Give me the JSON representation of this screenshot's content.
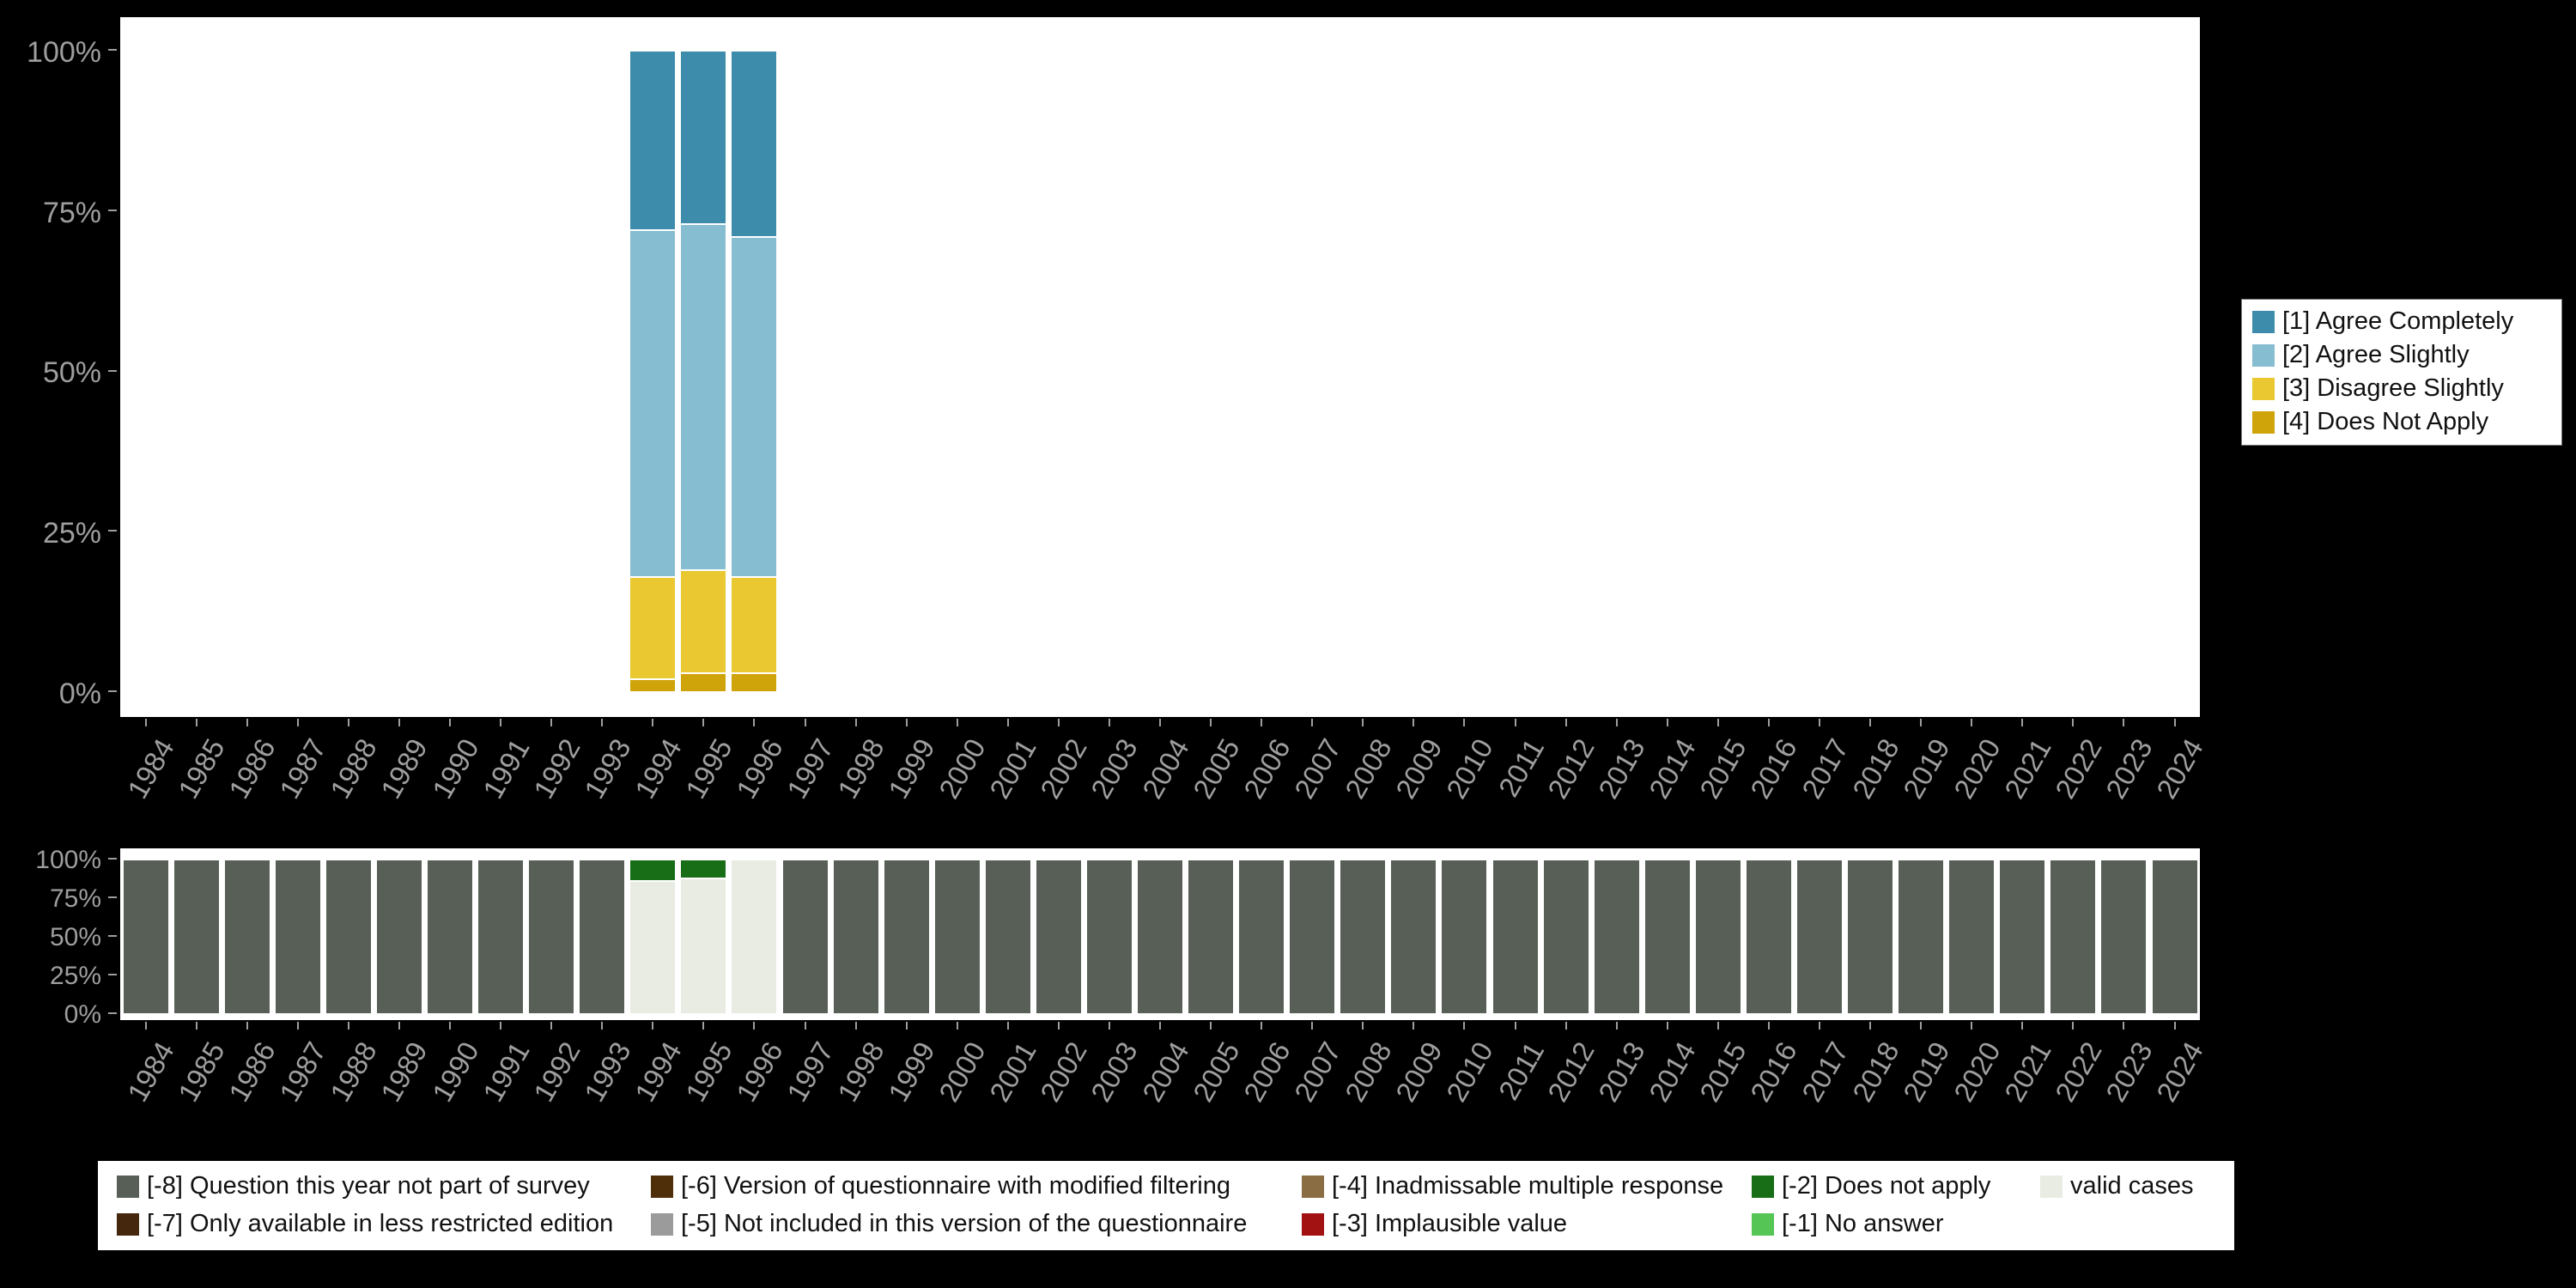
{
  "page": {
    "background": "#000000"
  },
  "chart_data": [
    {
      "type": "bar",
      "stacked": true,
      "title": "",
      "xlabel": "",
      "ylabel": "",
      "ylim": [
        0,
        100
      ],
      "grid": false,
      "legend_position": "right",
      "yticks": [
        "0%",
        "25%",
        "50%",
        "75%",
        "100%"
      ],
      "categories": [
        "1984",
        "1985",
        "1986",
        "1987",
        "1988",
        "1989",
        "1990",
        "1991",
        "1992",
        "1993",
        "1994",
        "1995",
        "1996",
        "1997",
        "1998",
        "1999",
        "2000",
        "2001",
        "2002",
        "2003",
        "2004",
        "2005",
        "2006",
        "2007",
        "2008",
        "2009",
        "2010",
        "2011",
        "2012",
        "2013",
        "2014",
        "2015",
        "2016",
        "2017",
        "2018",
        "2019",
        "2020",
        "2021",
        "2022",
        "2023",
        "2024"
      ],
      "series": [
        {
          "name": "[4] Does Not Apply",
          "color": "#cfa40a",
          "values": {
            "default": 0,
            "overrides": {
              "1994": 2,
              "1995": 3,
              "1996": 3
            }
          }
        },
        {
          "name": "[3] Disagree Slightly",
          "color": "#eac831",
          "values": {
            "default": 0,
            "overrides": {
              "1994": 16,
              "1995": 16,
              "1996": 15
            }
          }
        },
        {
          "name": "[2] Agree Slightly",
          "color": "#87bdd1",
          "values": {
            "default": 0,
            "overrides": {
              "1994": 54,
              "1995": 54,
              "1996": 53
            }
          }
        },
        {
          "name": "[1] Agree Completely",
          "color": "#3d8cab",
          "values": {
            "default": 0,
            "overrides": {
              "1994": 28,
              "1995": 27,
              "1996": 29
            }
          }
        }
      ]
    },
    {
      "type": "bar",
      "stacked": true,
      "title": "",
      "xlabel": "",
      "ylabel": "",
      "ylim": [
        0,
        100
      ],
      "grid": false,
      "legend_position": "bottom",
      "yticks": [
        "0%",
        "25%",
        "50%",
        "75%",
        "100%"
      ],
      "categories": [
        "1984",
        "1985",
        "1986",
        "1987",
        "1988",
        "1989",
        "1990",
        "1991",
        "1992",
        "1993",
        "1994",
        "1995",
        "1996",
        "1997",
        "1998",
        "1999",
        "2000",
        "2001",
        "2002",
        "2003",
        "2004",
        "2005",
        "2006",
        "2007",
        "2008",
        "2009",
        "2010",
        "2011",
        "2012",
        "2013",
        "2014",
        "2015",
        "2016",
        "2017",
        "2018",
        "2019",
        "2020",
        "2021",
        "2022",
        "2023",
        "2024"
      ],
      "series": [
        {
          "name": "[-8] Question this year not part of survey",
          "color": "#575f57",
          "values": {
            "default": 100,
            "overrides": {
              "1994": 0,
              "1995": 0,
              "1996": 0
            }
          }
        },
        {
          "name": "valid cases",
          "color": "#e8ece3",
          "values": {
            "default": 0,
            "overrides": {
              "1994": 86,
              "1995": 88,
              "1996": 100
            }
          }
        },
        {
          "name": "[-2] Does not apply",
          "color": "#176e17",
          "values": {
            "default": 0,
            "overrides": {
              "1994": 14,
              "1995": 12,
              "1996": 0
            }
          }
        }
      ]
    }
  ],
  "missing_legend": {
    "rows": [
      [
        {
          "label": "[-8] Question this year not part of survey",
          "color": "#575f57"
        },
        {
          "label": "[-6] Version of questionnaire with modified filtering",
          "color": "#4f2e0a"
        },
        {
          "label": "[-4] Inadmissable multiple response",
          "color": "#8a6d42"
        },
        {
          "label": "[-2] Does not apply",
          "color": "#176e17"
        },
        {
          "label": "valid cases",
          "color": "#e8ece3"
        }
      ],
      [
        {
          "label": "[-7] Only available in less restricted edition",
          "color": "#45270d"
        },
        {
          "label": "[-5] Not included in this version of the questionnaire",
          "color": "#9b9b9b"
        },
        {
          "label": "[-3] Implausible value",
          "color": "#a31212"
        },
        {
          "label": "[-1] No answer",
          "color": "#55c555"
        }
      ]
    ]
  }
}
